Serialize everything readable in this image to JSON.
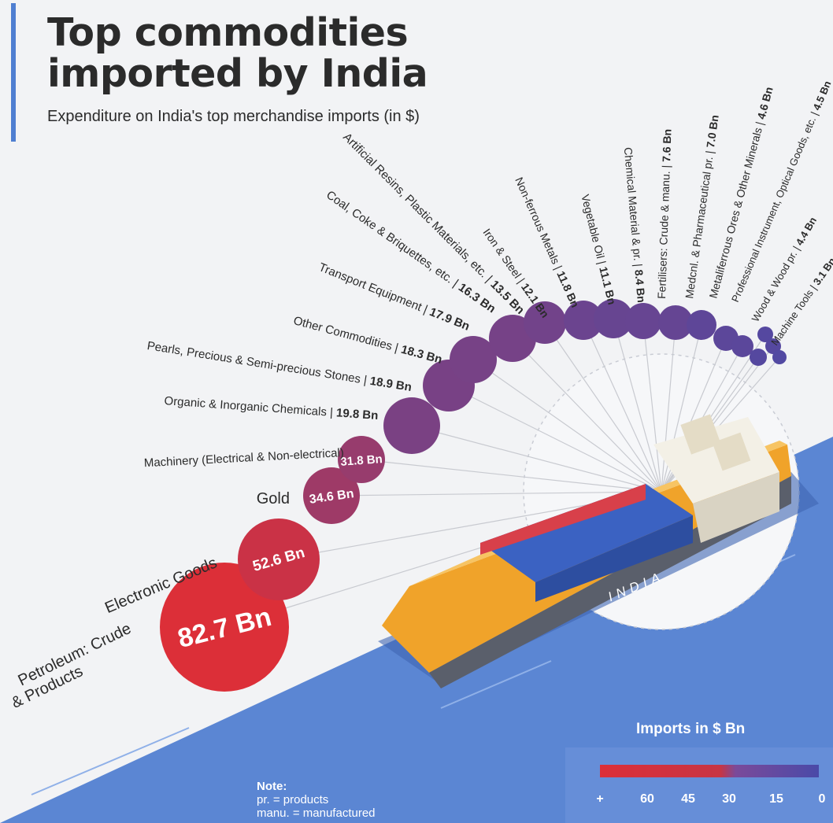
{
  "header": {
    "title_line1": "Top commodities",
    "title_line2": "imported by India",
    "subtitle": "Expenditure on India's top merchandise imports (in $)"
  },
  "ship_label": "INDIA",
  "legend": {
    "title": "Imports in $ Bn",
    "ticks": [
      "+",
      "60",
      "45",
      "30",
      "15",
      "0"
    ]
  },
  "note": {
    "heading": "Note:",
    "lines": [
      "pr. = products",
      "manu. = manufactured"
    ]
  },
  "colors": {
    "high": "#dc2f38",
    "mid": "#b03456",
    "low": "#4a4aa8",
    "sea": "#5b86d3",
    "hull": "#f0a32a"
  },
  "chart_data": {
    "type": "bubble",
    "title": "Top commodities imported by India",
    "subtitle": "Expenditure on India's top merchandise imports (in $)",
    "unit": "Bn",
    "categories": [
      "Petroleum: Crude & Products",
      "Electronic Goods",
      "Gold",
      "Machinery (Electrical & Non-electrical)",
      "Organic & Inorganic Chemicals",
      "Pearls, Precious & Semi-precious Stones",
      "Other Commodities",
      "Transport Equipment",
      "Coal, Coke & Briquettes, etc.",
      "Artificial Resins, Plastic Materials, etc.",
      "Iron & Steel",
      "Non-ferrous Metals",
      "Vegetable Oil",
      "Chemical Material & pr.",
      "Fertilisers: Crude & manu.",
      "Medcnl. & Pharmaceutical pr.",
      "Metaliferrous Ores & Other Minerals",
      "Professional Instrument, Optical Goods, etc.",
      "Wood & Wood pr.",
      "Machine Tools"
    ],
    "values": [
      82.7,
      52.6,
      34.6,
      31.8,
      19.8,
      18.9,
      18.3,
      17.9,
      16.3,
      13.5,
      12.1,
      11.8,
      11.1,
      8.4,
      7.6,
      7.0,
      4.6,
      4.5,
      4.4,
      3.1
    ],
    "value_labels": [
      "82.7 Bn",
      "52.6 Bn",
      "34.6 Bn",
      "31.8 Bn",
      "19.8 Bn",
      "18.9 Bn",
      "18.3 Bn",
      "17.9 Bn",
      "16.3 Bn",
      "13.5 Bn",
      "12.1 Bn",
      "11.8 Bn",
      "11.1 Bn",
      "8.4 Bn",
      "7.6 Bn",
      "7.0 Bn",
      "4.6 Bn",
      "4.5 Bn",
      "4.4 Bn",
      "3.1 Bn"
    ],
    "color_scale": {
      "max": 60,
      "min": 0,
      "high_color": "#dc2f38",
      "low_color": "#4a4aa8"
    }
  }
}
